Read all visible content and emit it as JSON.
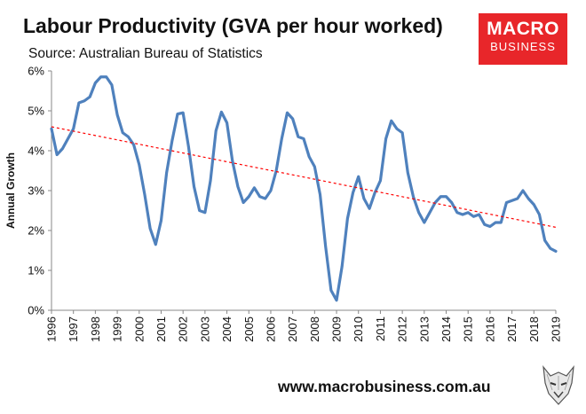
{
  "header": {
    "title": "Labour Productivity (GVA per hour worked)",
    "subtitle": "Source: Australian Bureau of Statistics"
  },
  "logo": {
    "line1": "MACRO",
    "line2": "BUSINESS"
  },
  "footer": {
    "url": "www.macrobusiness.com.au"
  },
  "colors": {
    "series": "#4f81bd",
    "trend": "#ff0000",
    "logo_bg": "#e8262a",
    "grid": "#d9d9d9"
  },
  "chart_data": {
    "type": "line",
    "ylabel": "Annual Growth",
    "ylim": [
      0,
      6
    ],
    "y_ticks": [
      "0%",
      "1%",
      "2%",
      "3%",
      "4%",
      "5%",
      "6%"
    ],
    "x_ticks": [
      "1996",
      "1997",
      "1998",
      "1999",
      "2000",
      "2001",
      "2002",
      "2003",
      "2004",
      "2005",
      "2006",
      "2007",
      "2008",
      "2009",
      "2010",
      "2011",
      "2012",
      "2013",
      "2014",
      "2015",
      "2016",
      "2017",
      "2018",
      "2019"
    ],
    "xlim": [
      1996,
      2019
    ],
    "grid": false,
    "legend": "none",
    "series": [
      {
        "style": "solid",
        "x": [
          1996,
          1996.25,
          1996.5,
          1996.75,
          1997,
          1997.25,
          1997.5,
          1997.75,
          1998,
          1998.25,
          1998.5,
          1998.75,
          1999,
          1999.25,
          1999.5,
          1999.75,
          2000,
          2000.25,
          2000.5,
          2000.75,
          2001,
          2001.25,
          2001.5,
          2001.75,
          2002,
          2002.25,
          2002.5,
          2002.75,
          2003,
          2003.25,
          2003.5,
          2003.75,
          2004,
          2004.25,
          2004.5,
          2004.75,
          2005,
          2005.25,
          2005.5,
          2005.75,
          2006,
          2006.25,
          2006.5,
          2006.75,
          2007,
          2007.25,
          2007.5,
          2007.75,
          2008,
          2008.25,
          2008.5,
          2008.75,
          2009,
          2009.25,
          2009.5,
          2009.75,
          2010,
          2010.25,
          2010.5,
          2010.75,
          2011,
          2011.25,
          2011.5,
          2011.75,
          2012,
          2012.25,
          2012.5,
          2012.75,
          2013,
          2013.25,
          2013.5,
          2013.75,
          2014,
          2014.25,
          2014.5,
          2014.75,
          2015,
          2015.25,
          2015.5,
          2015.75,
          2016,
          2016.25,
          2016.5,
          2016.75,
          2017,
          2017.25,
          2017.5,
          2017.75,
          2018,
          2018.25,
          2018.5,
          2018.75,
          2019
        ],
        "values": [
          4.55,
          3.9,
          4.05,
          4.3,
          4.55,
          5.2,
          5.25,
          5.35,
          5.7,
          5.85,
          5.85,
          5.65,
          4.9,
          4.45,
          4.35,
          4.15,
          3.65,
          2.9,
          2.05,
          1.65,
          2.25,
          3.45,
          4.25,
          4.92,
          4.95,
          4.1,
          3.1,
          2.5,
          2.45,
          3.25,
          4.5,
          4.97,
          4.7,
          3.75,
          3.1,
          2.7,
          2.85,
          3.07,
          2.85,
          2.8,
          3.0,
          3.5,
          4.3,
          4.95,
          4.8,
          4.35,
          4.3,
          3.85,
          3.6,
          2.9,
          1.6,
          0.5,
          0.25,
          1.1,
          2.3,
          2.95,
          3.35,
          2.8,
          2.55,
          2.95,
          3.25,
          4.3,
          4.75,
          4.55,
          4.45,
          3.45,
          2.85,
          2.45,
          2.2,
          2.45,
          2.7,
          2.85,
          2.85,
          2.7,
          2.45,
          2.4,
          2.45,
          2.35,
          2.4,
          2.15,
          2.1,
          2.2,
          2.2,
          2.7,
          2.75,
          2.8,
          3.0,
          2.8,
          2.65,
          2.4,
          1.75,
          1.55,
          1.48
        ]
      },
      {
        "style": "dashed",
        "x": [
          1996,
          2019
        ],
        "values": [
          4.6,
          2.08
        ]
      }
    ]
  }
}
